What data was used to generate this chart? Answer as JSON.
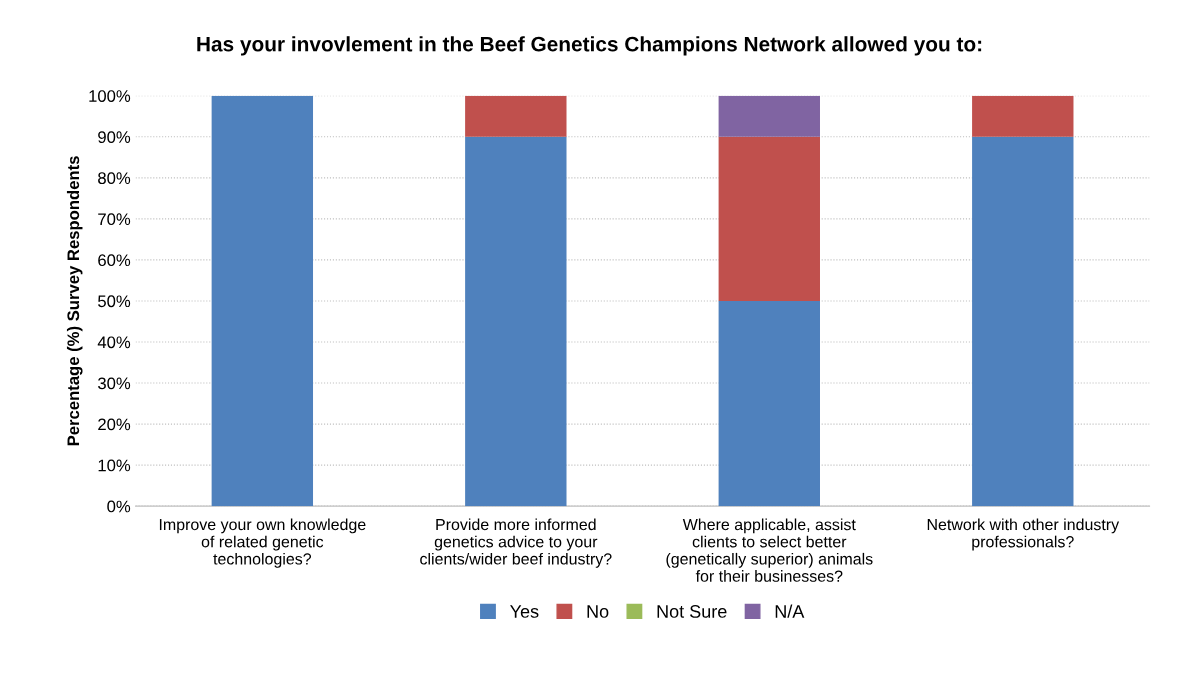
{
  "chart_data": {
    "type": "bar",
    "title": "Has your invovlement in the Beef Genetics Champions Network allowed you to:",
    "ylabel": "Percentage (%) Survey Respondents",
    "categories": [
      "Improve your own knowledge of related genetic technologies?",
      "Provide more informed genetics advice to your clients/wider beef industry?",
      "Where applicable, assist clients to select better (genetically superior) animals for their businesses?",
      "Network with other industry professionals?"
    ],
    "stacked": true,
    "series": [
      {
        "name": "Yes",
        "color": "#4f81bd",
        "values": [
          100,
          90,
          50,
          90
        ]
      },
      {
        "name": "No",
        "color": "#c0504d",
        "values": [
          0,
          10,
          40,
          10
        ]
      },
      {
        "name": "Not Sure",
        "color": "#9bbb59",
        "values": [
          0,
          0,
          0,
          0
        ]
      },
      {
        "name": "N/A",
        "color": "#8064a2",
        "values": [
          0,
          0,
          10,
          0
        ]
      }
    ],
    "ylim": [
      0,
      100
    ],
    "yticks": [
      {
        "value": 0,
        "label": "0%"
      },
      {
        "value": 10,
        "label": "10%"
      },
      {
        "value": 20,
        "label": "20%"
      },
      {
        "value": 30,
        "label": "30%"
      },
      {
        "value": 40,
        "label": "40%"
      },
      {
        "value": 50,
        "label": "50%"
      },
      {
        "value": 60,
        "label": "60%"
      },
      {
        "value": 70,
        "label": "70%"
      },
      {
        "value": 80,
        "label": "80%"
      },
      {
        "value": 90,
        "label": "90%"
      },
      {
        "value": 100,
        "label": "100%"
      }
    ],
    "grid": "y",
    "legend": "bottom"
  }
}
